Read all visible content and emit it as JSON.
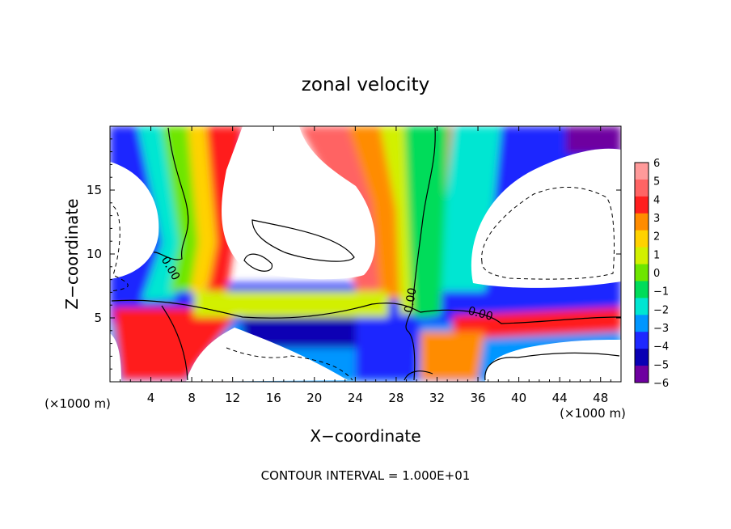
{
  "chart_data": {
    "type": "heatmap",
    "title": "zonal velocity",
    "xlabel": "X−coordinate",
    "ylabel": "Z−coordinate",
    "x_unit_label": "(×1000 m)",
    "x_unit_label_right": "(×1000 m)",
    "xlim": [
      0,
      50
    ],
    "ylim": [
      0,
      20
    ],
    "x_ticks": [
      4,
      8,
      12,
      16,
      20,
      24,
      28,
      32,
      36,
      40,
      44,
      48
    ],
    "y_ticks": [
      5,
      10,
      15
    ],
    "colorbar": {
      "levels": [
        6,
        5,
        4,
        3,
        2,
        1,
        0,
        -1,
        -2,
        -3,
        -4,
        -5,
        -6
      ],
      "labels": [
        "6",
        "5",
        "4",
        "3",
        "2",
        "1",
        "0",
        "−1",
        "−2",
        "−3",
        "−4",
        "−5",
        "−6"
      ],
      "colors": [
        "#ff9a9a",
        "#ff6464",
        "#ff1e1e",
        "#ff8c00",
        "#ffd200",
        "#d2f000",
        "#6ee600",
        "#00dc5a",
        "#00e6d2",
        "#0096ff",
        "#1e28ff",
        "#0a00b4",
        "#6e00a0"
      ]
    },
    "contour_labels": [
      "0.00",
      "0.00",
      "0.00"
    ],
    "footer": "CONTOUR INTERVAL = 1.000E+01"
  }
}
